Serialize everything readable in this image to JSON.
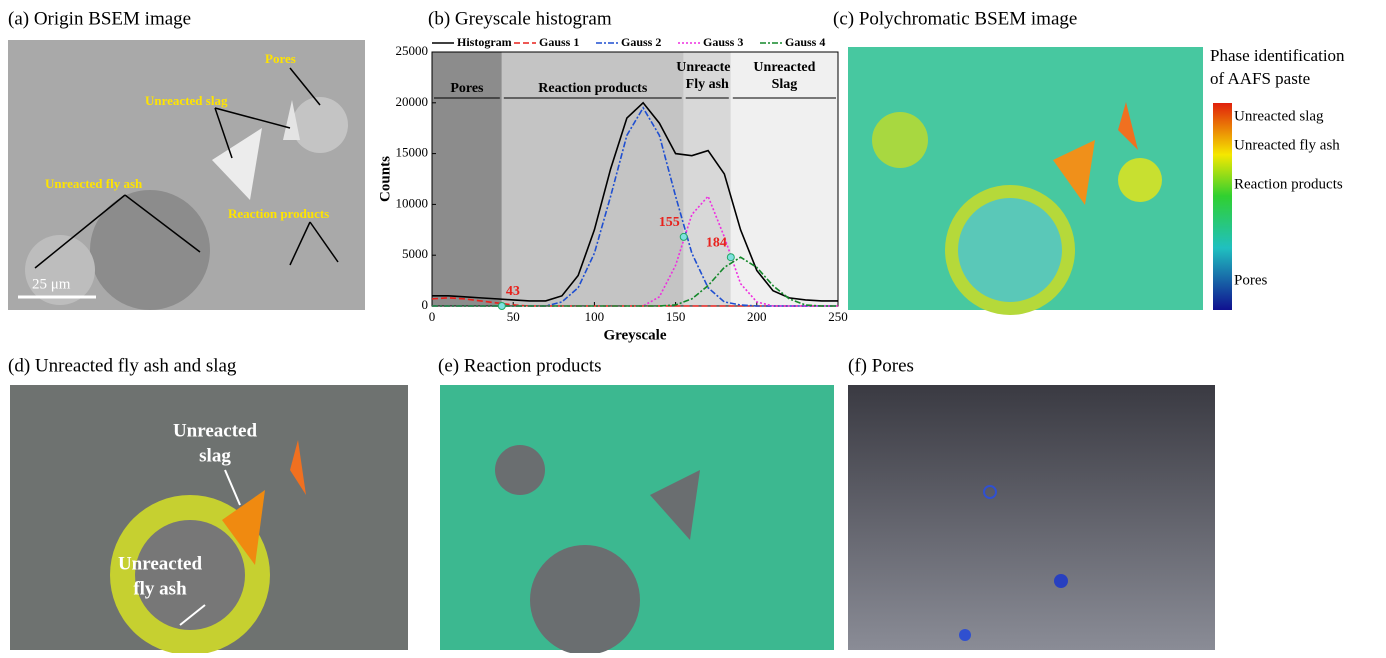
{
  "panels": {
    "a": {
      "title": "(a) Origin BSEM image",
      "labels": [
        "Pores",
        "Unreacted slag",
        "Unreacted fly ash",
        "Reaction products"
      ],
      "scale": "25 μm"
    },
    "b": {
      "title": "(b) Greyscale histogram"
    },
    "c": {
      "title": "(c) Polychromatic BSEM image",
      "legend_title": [
        "Phase identification",
        "of AAFS paste"
      ],
      "legend_labels": [
        "Unreacted slag",
        "Unreacted fly ash",
        "Reaction products",
        "Pores"
      ]
    },
    "d": {
      "title": "(d) Unreacted fly ash and slag",
      "labels": [
        [
          "Unreacted",
          "slag"
        ],
        [
          "Unreacted",
          "fly ash"
        ]
      ]
    },
    "e": {
      "title": "(e) Reaction products"
    },
    "f": {
      "title": "(f) Pores"
    }
  },
  "chart_data": {
    "type": "line",
    "x_label": "Greyscale",
    "y_label": "Counts",
    "legend": "top",
    "xlim": [
      0,
      250
    ],
    "xticks": [
      0,
      50,
      100,
      150,
      200,
      250
    ],
    "ylim": [
      0,
      25000
    ],
    "yticks": [
      0,
      5000,
      10000,
      15000,
      20000,
      25000
    ],
    "x": [
      0,
      10,
      20,
      30,
      40,
      50,
      60,
      70,
      80,
      90,
      100,
      110,
      120,
      130,
      140,
      150,
      160,
      170,
      180,
      190,
      200,
      210,
      220,
      230,
      240,
      250
    ],
    "series": [
      {
        "name": "Histogram",
        "color": "#000000",
        "dash": "solid",
        "values": [
          1000,
          1000,
          900,
          800,
          700,
          600,
          500,
          500,
          1000,
          3000,
          7500,
          13500,
          18500,
          20000,
          18000,
          15000,
          14800,
          15300,
          13000,
          7500,
          3500,
          1500,
          800,
          600,
          500,
          500
        ]
      },
      {
        "name": "Gauss 1",
        "color": "#e8211c",
        "dash": "dashed",
        "values": [
          700,
          800,
          700,
          500,
          300,
          100,
          0,
          0,
          0,
          0,
          0,
          0,
          0,
          0,
          0,
          0,
          0,
          0,
          0,
          0,
          0,
          0,
          0,
          0,
          0,
          0
        ]
      },
      {
        "name": "Gauss 2",
        "color": "#1f4fd1",
        "dash": "dashdot",
        "values": [
          0,
          0,
          0,
          0,
          0,
          0,
          0,
          0,
          400,
          1800,
          5200,
          10800,
          16800,
          19500,
          16800,
          10800,
          5200,
          1800,
          400,
          100,
          0,
          0,
          0,
          0,
          0,
          0
        ]
      },
      {
        "name": "Gauss 3",
        "color": "#ee2ee0",
        "dash": "dotted",
        "values": [
          0,
          0,
          0,
          0,
          0,
          0,
          0,
          0,
          0,
          0,
          0,
          0,
          0,
          0,
          900,
          4000,
          9000,
          10800,
          6800,
          2200,
          400,
          0,
          0,
          0,
          0,
          0
        ]
      },
      {
        "name": "Gauss 4",
        "color": "#14882a",
        "dash": "dashdot",
        "values": [
          0,
          0,
          0,
          0,
          0,
          0,
          0,
          0,
          0,
          0,
          0,
          0,
          0,
          0,
          0,
          100,
          700,
          2000,
          3800,
          4800,
          3800,
          2000,
          700,
          100,
          0,
          0
        ]
      }
    ],
    "thresholds": [
      43,
      155,
      184
    ],
    "threshold_y": [
      0,
      6800,
      4800
    ],
    "regions": [
      [
        "Pores"
      ],
      [
        "Reaction products"
      ],
      [
        "Unreacted",
        "Fly ash"
      ],
      [
        "Unreacted",
        "Slag"
      ]
    ]
  }
}
